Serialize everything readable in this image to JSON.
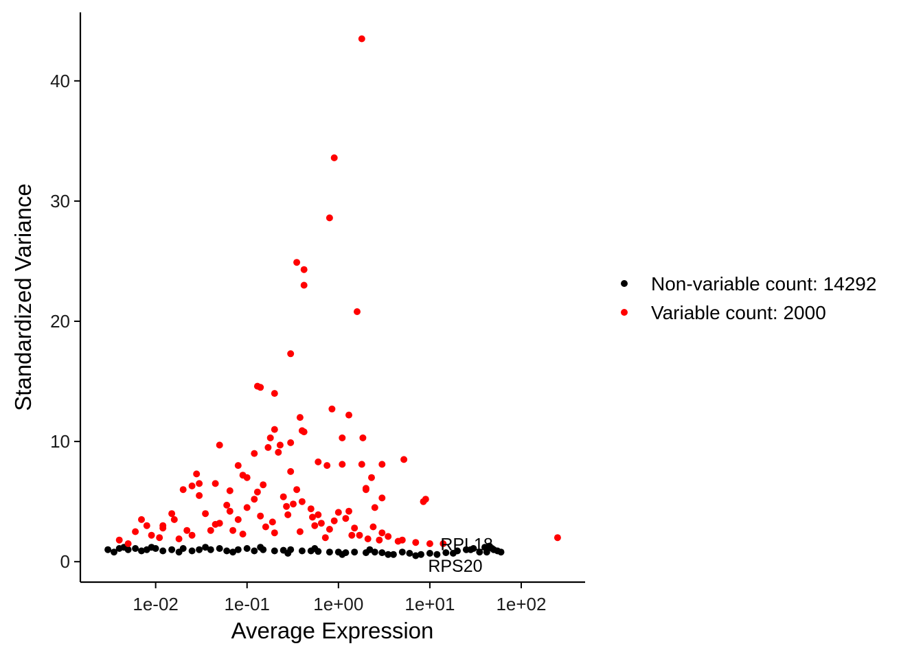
{
  "chart_data": {
    "type": "scatter",
    "x_scale": "log10",
    "xlabel": "Average Expression",
    "ylabel": "Standardized Variance",
    "xlim": [
      0.0015,
      500
    ],
    "ylim": [
      -1.7,
      45.7
    ],
    "x_ticks": [
      {
        "value": 0.01,
        "label": "1e-02"
      },
      {
        "value": 0.1,
        "label": "1e-01"
      },
      {
        "value": 1,
        "label": "1e+00"
      },
      {
        "value": 10,
        "label": "1e+01"
      },
      {
        "value": 100,
        "label": "1e+02"
      }
    ],
    "y_ticks": [
      {
        "value": 0,
        "label": "0"
      },
      {
        "value": 10,
        "label": "10"
      },
      {
        "value": 20,
        "label": "20"
      },
      {
        "value": 30,
        "label": "30"
      },
      {
        "value": 40,
        "label": "40"
      }
    ],
    "grid": false,
    "legend_position": "right",
    "series": [
      {
        "name": "Non-variable count: 14292",
        "color": "#000000",
        "x": [
          0.003,
          0.004,
          0.005,
          0.006,
          0.008,
          0.01,
          0.012,
          0.015,
          0.02,
          0.025,
          0.03,
          0.04,
          0.05,
          0.06,
          0.08,
          0.1,
          0.12,
          0.15,
          0.2,
          0.25,
          0.3,
          0.4,
          0.5,
          0.6,
          0.8,
          1.0,
          1.2,
          1.5,
          2.0,
          2.5,
          3.0,
          4.0,
          5.0,
          6.0,
          8.0,
          10.0,
          12.0,
          15.0,
          20.0,
          25.0,
          30.0,
          35.0,
          40.0,
          45.0,
          50.0,
          55.0,
          60.0,
          0.0035,
          0.0045,
          0.007,
          0.009,
          0.018,
          0.035,
          0.07,
          0.14,
          0.28,
          0.55,
          1.1,
          2.2,
          3.5,
          7.0,
          18.0,
          28.0,
          42.0,
          48.0
        ],
        "y": [
          1.0,
          1.1,
          1.0,
          1.1,
          1.0,
          1.1,
          0.9,
          1.0,
          1.1,
          0.9,
          1.0,
          1.0,
          1.1,
          0.9,
          1.0,
          1.1,
          0.9,
          1.0,
          0.9,
          0.95,
          1.0,
          0.9,
          0.9,
          0.85,
          0.8,
          0.8,
          0.75,
          0.8,
          0.75,
          0.8,
          0.75,
          0.6,
          0.8,
          0.7,
          0.6,
          0.7,
          0.6,
          0.75,
          0.9,
          1.0,
          1.1,
          0.8,
          1.2,
          1.3,
          1.0,
          0.9,
          0.8,
          0.8,
          1.2,
          0.9,
          1.2,
          0.8,
          1.2,
          0.8,
          1.2,
          0.7,
          1.1,
          0.6,
          1.0,
          0.6,
          0.5,
          0.7,
          1.0,
          0.8,
          1.1
        ]
      },
      {
        "name": "Variable count: 2000",
        "color": "#ff0000",
        "x": [
          1.8,
          0.9,
          0.8,
          0.35,
          0.42,
          0.42,
          1.6,
          0.3,
          0.13,
          0.14,
          0.2,
          0.38,
          0.85,
          1.3,
          0.4,
          0.42,
          0.2,
          1.1,
          1.85,
          0.05,
          0.3,
          0.12,
          0.17,
          0.22,
          0.23,
          0.18,
          0.6,
          0.75,
          1.1,
          1.8,
          3.0,
          2.3,
          5.2,
          2.0,
          0.3,
          0.09,
          0.08,
          0.028,
          0.03,
          0.025,
          0.02,
          0.045,
          0.065,
          0.1,
          9.0,
          8.5,
          3.0,
          2.0,
          2.5,
          1.3,
          250,
          0.004,
          0.006,
          0.008,
          0.012,
          0.016,
          0.025,
          0.035,
          0.05,
          0.07,
          0.1,
          0.14,
          0.2,
          0.28,
          0.4,
          0.55,
          0.8,
          1.2,
          1.7,
          2.4,
          3.5,
          5.0,
          7.0,
          10.0,
          14.0,
          0.005,
          0.007,
          0.011,
          0.015,
          0.022,
          0.03,
          0.045,
          0.065,
          0.09,
          0.13,
          0.19,
          0.27,
          0.38,
          0.52,
          0.72,
          1.0,
          1.5,
          2.1,
          3.0,
          4.5,
          0.009,
          0.018,
          0.04,
          0.08,
          0.16,
          0.32,
          0.65,
          1.4,
          2.8,
          0.15,
          0.25,
          0.5,
          0.35,
          0.6,
          0.9,
          0.06,
          0.12,
          0.012
        ],
        "y": [
          43.5,
          33.6,
          28.6,
          24.9,
          24.3,
          23.0,
          20.8,
          17.3,
          14.6,
          14.5,
          14.0,
          12.0,
          12.7,
          12.2,
          10.9,
          10.8,
          11.0,
          10.3,
          10.3,
          9.7,
          9.9,
          9.0,
          9.5,
          9.1,
          9.7,
          10.3,
          8.3,
          8.0,
          8.1,
          8.1,
          8.1,
          7.0,
          8.5,
          6.0,
          7.5,
          7.2,
          8.0,
          7.3,
          6.5,
          6.3,
          6.0,
          6.5,
          5.9,
          7.0,
          5.2,
          5.0,
          5.3,
          6.1,
          4.5,
          4.2,
          2.0,
          1.8,
          2.5,
          3.0,
          2.8,
          3.5,
          2.2,
          4.0,
          3.2,
          2.6,
          4.5,
          3.8,
          2.4,
          3.9,
          5.0,
          3.0,
          2.7,
          3.6,
          2.2,
          2.9,
          2.1,
          1.8,
          1.6,
          1.5,
          1.5,
          1.5,
          3.5,
          2.0,
          4.0,
          2.6,
          5.5,
          3.1,
          4.2,
          2.3,
          5.8,
          3.3,
          4.6,
          2.5,
          3.7,
          2.0,
          4.1,
          2.8,
          1.9,
          2.4,
          1.7,
          2.2,
          1.9,
          2.6,
          3.5,
          2.9,
          4.8,
          3.2,
          2.2,
          1.8,
          6.4,
          5.4,
          4.4,
          6.0,
          3.9,
          3.4,
          4.7,
          5.2,
          3.0
        ]
      }
    ],
    "annotations": [
      {
        "label": "RPL18",
        "x": 48,
        "y": 1.3
      },
      {
        "label": "RPS20",
        "x": 36,
        "y": -0.5
      }
    ]
  }
}
